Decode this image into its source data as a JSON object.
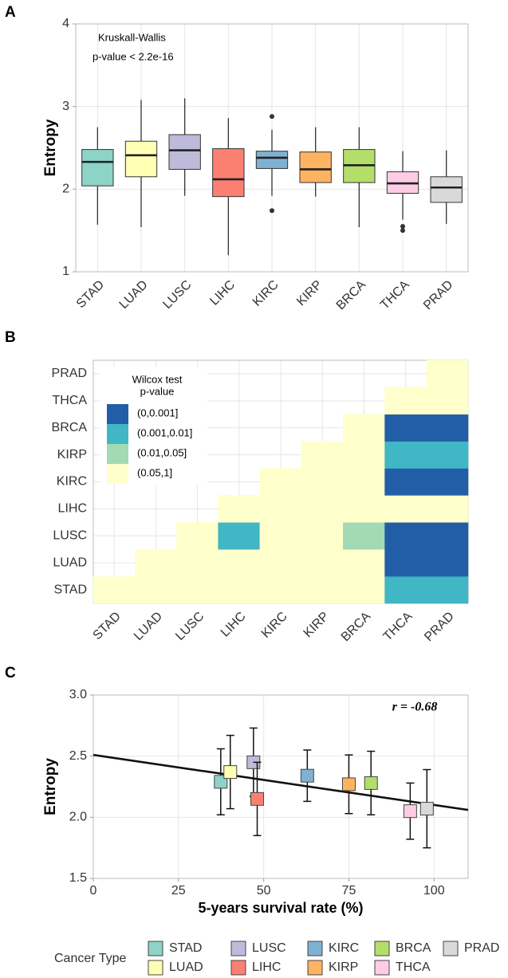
{
  "chart_data": [
    {
      "type": "box",
      "panel": "A",
      "ylabel": "Entropy",
      "annotations": [
        "Kruskall-Wallis",
        "p-value < 2.2e-16"
      ],
      "categories": [
        "STAD",
        "LUAD",
        "LUSC",
        "LIHC",
        "KIRC",
        "KIRP",
        "BRCA",
        "THCA",
        "PRAD"
      ],
      "colors": [
        "#8dd3c7",
        "#ffffb3",
        "#bebada",
        "#fb8072",
        "#80b1d3",
        "#fdb462",
        "#b3de69",
        "#fccde5",
        "#d9d9d9"
      ],
      "boxes": [
        {
          "min": 1.57,
          "q1": 2.04,
          "median": 2.33,
          "q3": 2.48,
          "max": 2.75,
          "outliers": []
        },
        {
          "min": 1.54,
          "q1": 2.15,
          "median": 2.41,
          "q3": 2.58,
          "max": 3.08,
          "outliers": []
        },
        {
          "min": 1.92,
          "q1": 2.24,
          "median": 2.47,
          "q3": 2.66,
          "max": 3.1,
          "outliers": []
        },
        {
          "min": 1.2,
          "q1": 1.91,
          "median": 2.12,
          "q3": 2.49,
          "max": 2.86,
          "outliers": []
        },
        {
          "min": 1.92,
          "q1": 2.25,
          "median": 2.38,
          "q3": 2.46,
          "max": 2.72,
          "outliers": [
            2.88,
            1.74
          ]
        },
        {
          "min": 1.91,
          "q1": 2.08,
          "median": 2.24,
          "q3": 2.45,
          "max": 2.75,
          "outliers": []
        },
        {
          "min": 1.54,
          "q1": 2.08,
          "median": 2.29,
          "q3": 2.48,
          "max": 2.75,
          "outliers": []
        },
        {
          "min": 1.63,
          "q1": 1.95,
          "median": 2.07,
          "q3": 2.21,
          "max": 2.46,
          "outliers": [
            1.55,
            1.5
          ]
        },
        {
          "min": 1.58,
          "q1": 1.84,
          "median": 2.02,
          "q3": 2.15,
          "max": 2.47,
          "outliers": []
        }
      ],
      "ylim": [
        1,
        4
      ],
      "yticks": [
        1,
        2,
        3,
        4
      ],
      "grid": true
    },
    {
      "type": "heatmap",
      "panel": "B",
      "x": [
        "STAD",
        "LUAD",
        "LUSC",
        "LIHC",
        "KIRC",
        "KIRP",
        "BRCA",
        "THCA",
        "PRAD"
      ],
      "y": [
        "STAD",
        "LUAD",
        "LUSC",
        "LIHC",
        "KIRC",
        "KIRP",
        "BRCA",
        "THCA",
        "PRAD"
      ],
      "legend": {
        "title": [
          "Wilcox test",
          "p-value"
        ],
        "levels": [
          "(0,0.001]",
          "(0.001,0.01]",
          "(0.01,0.05]",
          "(0.05,1]"
        ],
        "colors": [
          "#225ea8",
          "#41b6c4",
          "#a1dab4",
          "#ffffcc"
        ]
      },
      "values": [
        [
          "(0.05,1]",
          "(0.05,1]",
          "(0.05,1]",
          "(0.05,1]",
          "(0.05,1]",
          "(0.05,1]",
          "(0.05,1]",
          "(0.001,0.01]",
          "(0.001,0.01]"
        ],
        [
          null,
          "(0.05,1]",
          "(0.05,1]",
          "(0.05,1]",
          "(0.05,1]",
          "(0.05,1]",
          "(0.05,1]",
          "(0,0.001]",
          "(0,0.001]"
        ],
        [
          null,
          null,
          "(0.05,1]",
          "(0.001,0.01]",
          "(0.05,1]",
          "(0.05,1]",
          "(0.01,0.05]",
          "(0,0.001]",
          "(0,0.001]"
        ],
        [
          null,
          null,
          null,
          "(0.05,1]",
          "(0.05,1]",
          "(0.05,1]",
          "(0.05,1]",
          "(0.05,1]",
          "(0.05,1]"
        ],
        [
          null,
          null,
          null,
          null,
          "(0.05,1]",
          "(0.05,1]",
          "(0.05,1]",
          "(0,0.001]",
          "(0,0.001]"
        ],
        [
          null,
          null,
          null,
          null,
          null,
          "(0.05,1]",
          "(0.05,1]",
          "(0.001,0.01]",
          "(0.001,0.01]"
        ],
        [
          null,
          null,
          null,
          null,
          null,
          null,
          "(0.05,1]",
          "(0,0.001]",
          "(0,0.001]"
        ],
        [
          null,
          null,
          null,
          null,
          null,
          null,
          null,
          "(0.05,1]",
          "(0.05,1]"
        ],
        [
          null,
          null,
          null,
          null,
          null,
          null,
          null,
          null,
          "(0.05,1]"
        ]
      ]
    },
    {
      "type": "scatter",
      "panel": "C",
      "xlabel": "5-years survival rate (%)",
      "ylabel": "Entropy",
      "annotation": "r = -0.68",
      "x": [
        37.4,
        40.2,
        47,
        48.1,
        62.8,
        75,
        81.5,
        93,
        97.9
      ],
      "values": [
        2.29,
        2.37,
        2.45,
        2.15,
        2.34,
        2.27,
        2.28,
        2.05,
        2.07
      ],
      "errors": [
        0.27,
        0.3,
        0.28,
        0.3,
        0.21,
        0.24,
        0.26,
        0.23,
        0.32
      ],
      "regression_line": {
        "x": [
          0,
          110
        ],
        "y": [
          2.51,
          2.06
        ]
      },
      "xlim": [
        0,
        110
      ],
      "xticks": [
        0,
        25,
        50,
        75,
        100
      ],
      "ylim": [
        1.5,
        3.0
      ],
      "yticks": [
        1.5,
        {
          "value": 2,
          "label": "2.0"
        },
        2.5,
        {
          "value": 3,
          "label": "3.0"
        }
      ],
      "grid": true
    }
  ],
  "legend": {
    "title": "Cancer Type"
  }
}
